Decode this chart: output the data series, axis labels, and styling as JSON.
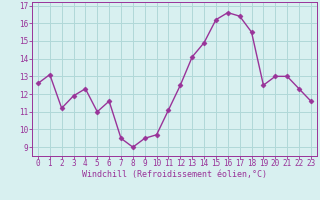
{
  "x": [
    0,
    1,
    2,
    3,
    4,
    5,
    6,
    7,
    8,
    9,
    10,
    11,
    12,
    13,
    14,
    15,
    16,
    17,
    18,
    19,
    20,
    21,
    22,
    23
  ],
  "y": [
    12.6,
    13.1,
    11.2,
    11.9,
    12.3,
    11.0,
    11.6,
    9.5,
    9.0,
    9.5,
    9.7,
    11.1,
    12.5,
    14.1,
    14.9,
    16.2,
    16.6,
    16.4,
    15.5,
    12.5,
    13.0,
    13.0,
    12.3,
    11.6
  ],
  "line_color": "#993399",
  "marker": "D",
  "markersize": 2.5,
  "linewidth": 1.0,
  "xlabel": "Windchill (Refroidissement éolien,°C)",
  "xlabel_fontsize": 6,
  "background_color": "#d8f0f0",
  "grid_color": "#b0d8d8",
  "tick_color": "#993399",
  "label_color": "#993399",
  "xlim": [
    -0.5,
    23.5
  ],
  "ylim": [
    8.5,
    17.2
  ],
  "yticks": [
    9,
    10,
    11,
    12,
    13,
    14,
    15,
    16,
    17
  ],
  "xticks": [
    0,
    1,
    2,
    3,
    4,
    5,
    6,
    7,
    8,
    9,
    10,
    11,
    12,
    13,
    14,
    15,
    16,
    17,
    18,
    19,
    20,
    21,
    22,
    23
  ],
  "tick_fontsize": 5.5
}
